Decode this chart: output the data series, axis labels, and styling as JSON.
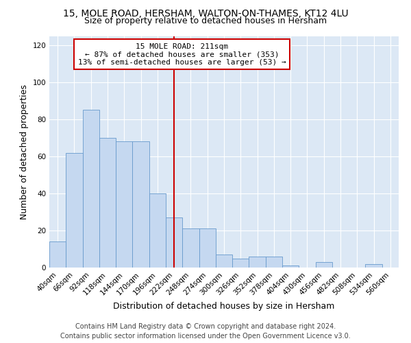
{
  "title": "15, MOLE ROAD, HERSHAM, WALTON-ON-THAMES, KT12 4LU",
  "subtitle": "Size of property relative to detached houses in Hersham",
  "xlabel": "Distribution of detached houses by size in Hersham",
  "ylabel": "Number of detached properties",
  "footer_line1": "Contains HM Land Registry data © Crown copyright and database right 2024.",
  "footer_line2": "Contains public sector information licensed under the Open Government Licence v3.0.",
  "bar_labels": [
    "40sqm",
    "66sqm",
    "92sqm",
    "118sqm",
    "144sqm",
    "170sqm",
    "196sqm",
    "222sqm",
    "248sqm",
    "274sqm",
    "300sqm",
    "326sqm",
    "352sqm",
    "378sqm",
    "404sqm",
    "430sqm",
    "456sqm",
    "482sqm",
    "508sqm",
    "534sqm",
    "560sqm"
  ],
  "bar_heights": [
    14,
    62,
    85,
    70,
    68,
    68,
    40,
    27,
    21,
    21,
    7,
    5,
    6,
    6,
    1,
    0,
    3,
    0,
    0,
    2,
    0
  ],
  "bar_color": "#c5d8f0",
  "bar_edge_color": "#6699cc",
  "ylim": [
    0,
    125
  ],
  "yticks": [
    0,
    20,
    40,
    60,
    80,
    100,
    120
  ],
  "property_label": "15 MOLE ROAD: 211sqm",
  "annotation_line1": "← 87% of detached houses are smaller (353)",
  "annotation_line2": "13% of semi-detached houses are larger (53) →",
  "vline_x_index": 7,
  "box_bg": "#ffffff",
  "box_edge_color": "#cc0000",
  "vline_color": "#cc0000",
  "fig_bg_color": "#ffffff",
  "plot_bg_color": "#dce8f5",
  "grid_color": "#ffffff",
  "title_fontsize": 10,
  "subtitle_fontsize": 9,
  "axis_label_fontsize": 9,
  "tick_fontsize": 7.5,
  "annotation_fontsize": 8,
  "footer_fontsize": 7
}
